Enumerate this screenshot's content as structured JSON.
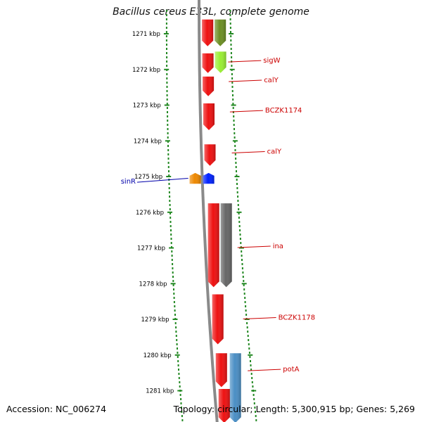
{
  "title": "Bacillus cereus E33L, complete genome",
  "footer": {
    "accession": "Accession: NC_006274",
    "summary": "Topology: circular; Length: 5,300,915 bp; Genes: 5,269"
  },
  "ruler": {
    "unit": "kbp",
    "ticks": [
      {
        "kbp": 1271,
        "label": "1271 kbp"
      },
      {
        "kbp": 1272,
        "label": "1272 kbp"
      },
      {
        "kbp": 1273,
        "label": "1273 kbp"
      },
      {
        "kbp": 1274,
        "label": "1274 kbp"
      },
      {
        "kbp": 1275,
        "label": "1275 kbp"
      },
      {
        "kbp": 1276,
        "label": "1276 kbp"
      },
      {
        "kbp": 1277,
        "label": "1277 kbp"
      },
      {
        "kbp": 1278,
        "label": "1278 kbp"
      },
      {
        "kbp": 1279,
        "label": "1279 kbp"
      },
      {
        "kbp": 1280,
        "label": "1280 kbp"
      },
      {
        "kbp": 1281,
        "label": "1281 kbp"
      }
    ]
  },
  "colors": {
    "cds": "#ee1111",
    "ruler": "#228822",
    "backbone": "#8a8a8a",
    "forward_label": "#cc0000",
    "reverse_label": "#0000aa",
    "olive": "#6b8e23",
    "lime": "#99ee33",
    "orange": "#ee8800",
    "blue": "#0022ff",
    "gray": "#666666",
    "steelblue": "#4a8ec4"
  },
  "features": [
    {
      "name": "",
      "lane": "cds",
      "start": 1270.6,
      "end": 1271.35,
      "color": "#ee1111"
    },
    {
      "name": "",
      "lane": "rna",
      "start": 1270.6,
      "end": 1271.35,
      "color": "#6b8e23"
    },
    {
      "name": "sigW",
      "lane": "cds",
      "start": 1271.55,
      "end": 1272.1,
      "color": "#ee1111",
      "label_at": 1271.75
    },
    {
      "name": "",
      "lane": "rna",
      "start": 1271.5,
      "end": 1272.1,
      "color": "#99ee33"
    },
    {
      "name": "calY",
      "lane": "cds",
      "start": 1272.2,
      "end": 1272.75,
      "color": "#ee1111",
      "label_at": 1272.3
    },
    {
      "name": "BCZK1174",
      "lane": "cds",
      "start": 1272.95,
      "end": 1273.7,
      "color": "#ee1111",
      "label_at": 1273.15
    },
    {
      "name": "calY",
      "lane": "cds",
      "start": 1274.1,
      "end": 1274.7,
      "color": "#ee1111",
      "label_at": 1274.3
    },
    {
      "name": "sinR",
      "lane": "minus2",
      "start": 1274.9,
      "end": 1275.2,
      "color": "#ee8800",
      "label_at": 1275.1
    },
    {
      "name": "",
      "lane": "minus1",
      "start": 1274.9,
      "end": 1275.2,
      "color": "#0022ff"
    },
    {
      "name": "ina",
      "lane": "cds",
      "start": 1275.75,
      "end": 1278.1,
      "color": "#ee1111",
      "label_at": 1276.95
    },
    {
      "name": "",
      "lane": "rna",
      "start": 1275.75,
      "end": 1278.1,
      "color": "#666666"
    },
    {
      "name": "BCZK1178",
      "lane": "cds",
      "start": 1278.3,
      "end": 1279.7,
      "color": "#ee1111",
      "label_at": 1278.95
    },
    {
      "name": "potA",
      "lane": "cds",
      "start": 1279.95,
      "end": 1280.9,
      "color": "#ee1111",
      "label_at": 1280.4
    },
    {
      "name": "",
      "lane": "rna",
      "start": 1279.95,
      "end": 1281.9,
      "color": "#4a8ec4"
    },
    {
      "name": "",
      "lane": "cds",
      "start": 1280.95,
      "end": 1281.9,
      "color": "#ee1111"
    }
  ]
}
